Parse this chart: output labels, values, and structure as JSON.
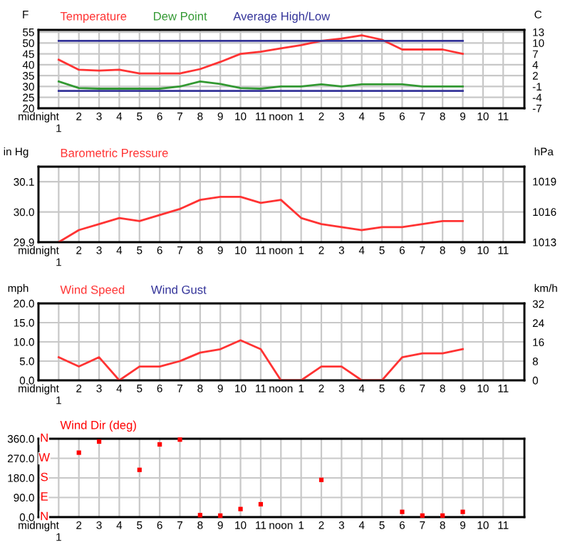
{
  "chart_data": [
    {
      "type": "line",
      "ylabel": "F",
      "y2label": "C",
      "legend": "top left",
      "grid": true,
      "marker": "none",
      "categories": [
        "midnight",
        "1",
        "2",
        "3",
        "4",
        "5",
        "6",
        "7",
        "8",
        "9",
        "10",
        "11",
        "noon",
        "1",
        "2",
        "3",
        "4",
        "5",
        "6",
        "7",
        "8",
        "9",
        "10",
        "11"
      ],
      "ylim": [
        20,
        56
      ],
      "yticks": [
        20,
        25,
        30,
        35,
        40,
        45,
        50,
        55
      ],
      "y2lim": [
        -6.67,
        13.33
      ],
      "y2ticks": [
        {
          "value": -6.67,
          "label": "-7"
        },
        {
          "value": -3.89,
          "label": "-4"
        },
        {
          "value": -1.11,
          "label": "-1"
        },
        {
          "value": 1.67,
          "label": "2"
        },
        {
          "value": 4.44,
          "label": "4"
        },
        {
          "value": 7.22,
          "label": "7"
        },
        {
          "value": 10,
          "label": "10"
        },
        {
          "value": 12.78,
          "label": "13"
        }
      ],
      "series": [
        {
          "name": "Temperature",
          "color": "#ff3333",
          "values": [
            null,
            42.3,
            37.7,
            37.3,
            37.7,
            36,
            36,
            36,
            38,
            41.3,
            45,
            46,
            47.5,
            49,
            51,
            52,
            53.5,
            51.5,
            47,
            47,
            47,
            45,
            null,
            null
          ]
        },
        {
          "name": "Dew Point",
          "color": "#339933",
          "values": [
            null,
            32.3,
            29.3,
            29,
            29,
            29,
            29,
            30,
            32.3,
            31.2,
            29.3,
            29,
            30,
            30,
            31,
            30,
            31,
            31,
            31,
            30,
            30,
            30,
            null,
            null
          ]
        },
        {
          "name": "Average High/Low",
          "color": "#333399",
          "values": [
            null,
            51,
            51,
            51,
            51,
            51,
            51,
            51,
            51,
            51,
            51,
            51,
            51,
            51,
            51,
            51,
            51,
            51,
            51,
            51,
            51,
            51,
            null,
            null
          ]
        },
        {
          "color": "#333399",
          "values": [
            null,
            28,
            28,
            28,
            28,
            28,
            28,
            28,
            28,
            28,
            28,
            28,
            28,
            28,
            28,
            28,
            28,
            28,
            28,
            28,
            28,
            28,
            null,
            null
          ]
        }
      ]
    },
    {
      "type": "line",
      "ylabel": "in Hg",
      "y2label": "hPa",
      "legend": "top left",
      "grid": true,
      "marker": "none",
      "categories": [
        "midnight",
        "1",
        "2",
        "3",
        "4",
        "5",
        "6",
        "7",
        "8",
        "9",
        "10",
        "11",
        "noon",
        "1",
        "2",
        "3",
        "4",
        "5",
        "6",
        "7",
        "8",
        "9",
        "10",
        "11"
      ],
      "ylim": [
        29.9,
        30.15
      ],
      "yticks": [
        29.9,
        {
          "value": 30.0,
          "label": "30.0"
        },
        30.1
      ],
      "y2lim": [
        1012.53,
        1020.96
      ],
      "y2ticks": [
        {
          "value": 1012.53,
          "label": "1013"
        },
        {
          "value": 1015.92,
          "label": "1016"
        },
        {
          "value": 1019.31,
          "label": "1019"
        }
      ],
      "series": [
        {
          "name": "Barometric Pressure",
          "color": "#ff3333",
          "values": [
            null,
            29.9,
            29.94,
            29.96,
            29.98,
            29.97,
            29.99,
            30.01,
            30.04,
            30.05,
            30.05,
            30.03,
            30.04,
            29.98,
            29.96,
            29.95,
            29.94,
            29.95,
            29.95,
            29.96,
            29.97,
            29.97,
            null,
            null
          ]
        }
      ]
    },
    {
      "type": "line",
      "ylabel": "mph",
      "y2label": "km/h",
      "legend": "top left",
      "grid": true,
      "marker": "none",
      "categories": [
        "midnight",
        "1",
        "2",
        "3",
        "4",
        "5",
        "6",
        "7",
        "8",
        "9",
        "10",
        "11",
        "noon",
        "1",
        "2",
        "3",
        "4",
        "5",
        "6",
        "7",
        "8",
        "9",
        "10",
        "11"
      ],
      "ylim": [
        0,
        20
      ],
      "yticks": [
        {
          "value": 0,
          "label": "0.0"
        },
        {
          "value": 5,
          "label": "5.0"
        },
        {
          "value": 10,
          "label": "10.0"
        },
        {
          "value": 15,
          "label": "15.0"
        },
        {
          "value": 20,
          "label": "20.0"
        }
      ],
      "y2lim": [
        0,
        32.19
      ],
      "y2ticks": [
        0,
        8,
        16,
        24,
        32
      ],
      "series": [
        {
          "name": "Wind Speed",
          "color": "#ff3333",
          "values": [
            null,
            6.0,
            3.6,
            6.0,
            0,
            3.6,
            3.6,
            5.0,
            7.2,
            8.1,
            10.4,
            8.1,
            0,
            0,
            3.6,
            3.6,
            0,
            0,
            6.0,
            7.0,
            7.0,
            8.1,
            null,
            null
          ]
        },
        {
          "name": "Wind Gust",
          "color": "#333399",
          "values": [
            null,
            null,
            null,
            null,
            null,
            null,
            null,
            null,
            null,
            null,
            null,
            null,
            null,
            null,
            null,
            null,
            null,
            null,
            null,
            null,
            null,
            null,
            null,
            null
          ]
        }
      ]
    },
    {
      "type": "scatter",
      "legend": "top left",
      "grid": true,
      "marker": "square",
      "categories": [
        "midnight",
        "1",
        "2",
        "3",
        "4",
        "5",
        "6",
        "7",
        "8",
        "9",
        "10",
        "11",
        "noon",
        "1",
        "2",
        "3",
        "4",
        "5",
        "6",
        "7",
        "8",
        "9",
        "10",
        "11"
      ],
      "ylim": [
        0,
        360
      ],
      "yticks": [
        {
          "value": 0,
          "label": "0.0"
        },
        {
          "value": 90,
          "label": "90.0"
        },
        {
          "value": 180,
          "label": "180.0"
        },
        {
          "value": 270,
          "label": "270.0"
        },
        {
          "value": 360,
          "label": "360.0"
        }
      ],
      "annotations": [
        "N",
        "E",
        "S",
        "W",
        "N"
      ],
      "series": [
        {
          "name": "Wind Dir (deg)",
          "color": "#ff0000",
          "values": [
            null,
            null,
            296,
            347,
            null,
            217,
            334,
            356,
            9,
            7,
            37,
            59,
            null,
            null,
            171,
            null,
            null,
            null,
            24,
            7,
            7,
            24,
            null,
            null
          ]
        }
      ]
    }
  ]
}
